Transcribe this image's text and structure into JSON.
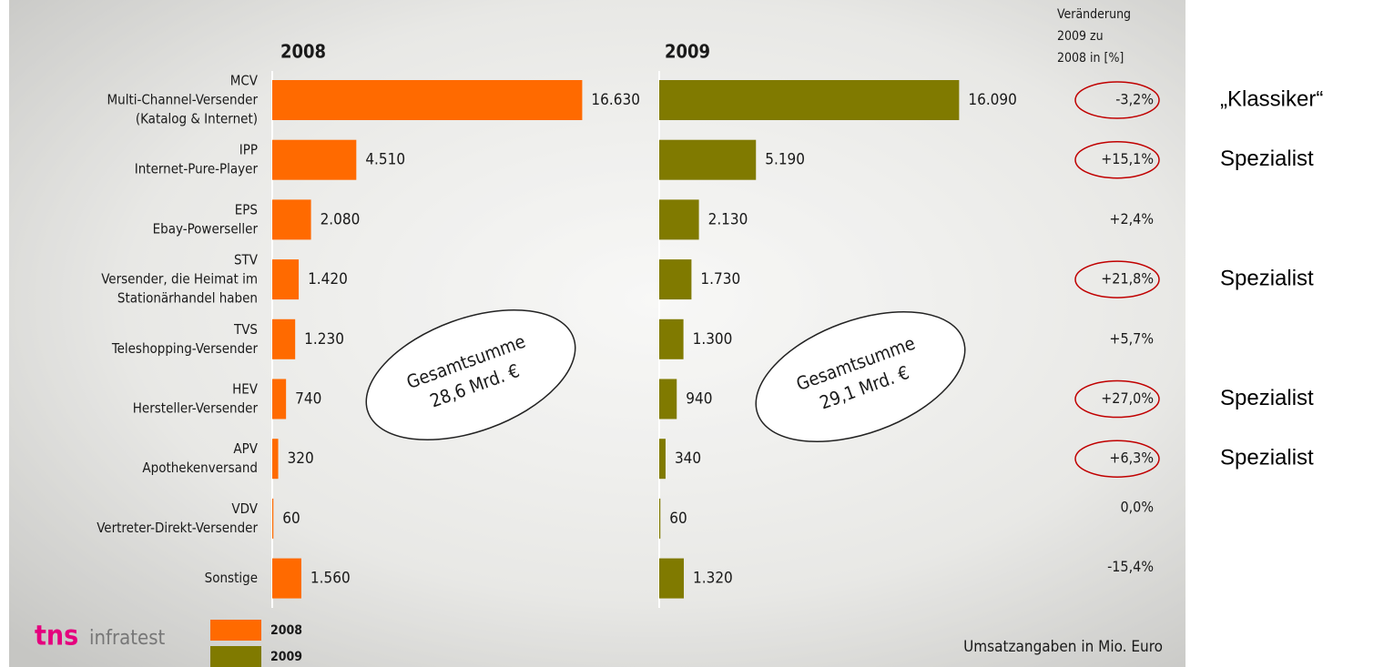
{
  "chart_data": {
    "type": "bar",
    "orientation": "horizontal",
    "categories": [
      "MCV",
      "IPP",
      "EPS",
      "STV",
      "TVS",
      "HEV",
      "APV",
      "VDV",
      "Sonstige"
    ],
    "category_descriptions": [
      [
        "Multi-Channel-Versender",
        "(Katalog & Internet)"
      ],
      [
        "Internet-Pure-Player"
      ],
      [
        "Ebay-Powerseller"
      ],
      [
        "Versender, die Heimat im",
        "Stationärhandel haben"
      ],
      [
        "Teleshopping-Versender"
      ],
      [
        "Hersteller-Versender"
      ],
      [
        "Apothekenversand"
      ],
      [
        "Vertreter-Direkt-Versender"
      ],
      []
    ],
    "series": [
      {
        "name": "2008",
        "color": "#ff6a00",
        "values": [
          16630,
          4510,
          2080,
          1420,
          1230,
          740,
          320,
          60,
          1560
        ],
        "value_labels": [
          "16.630",
          "4.510",
          "2.080",
          "1.420",
          "1.230",
          "740",
          "320",
          "60",
          "1.560"
        ]
      },
      {
        "name": "2009",
        "color": "#807a00",
        "values": [
          16090,
          5190,
          2130,
          1730,
          1300,
          940,
          340,
          60,
          1320
        ],
        "value_labels": [
          "16.090",
          "5.190",
          "2.130",
          "1.730",
          "1.300",
          "940",
          "340",
          "60",
          "1.320"
        ]
      }
    ],
    "xlim": [
      0,
      17000
    ],
    "totals": [
      {
        "label": "Gesamtsumme",
        "value_label": "28,6 Mrd. €"
      },
      {
        "label": "Gesamtsumme",
        "value_label": "29,1 Mrd. €"
      }
    ],
    "change": {
      "title": [
        "Veränderung",
        "2009 zu",
        "2008 in [%]"
      ],
      "values": [
        -3.2,
        15.1,
        2.4,
        21.8,
        5.7,
        27.0,
        6.3,
        0.0,
        -15.4
      ],
      "value_labels": [
        "-3,2%",
        "+15,1%",
        "+2,4%",
        "+21,8%",
        "+5,7%",
        "+27,0%",
        "+6,3%",
        "0,0%",
        "-15,4%"
      ],
      "highlighted": [
        true,
        true,
        false,
        true,
        false,
        true,
        true,
        false,
        false
      ],
      "highlight_color": "#c00000"
    },
    "annotations": [
      "„Klassiker“",
      "Spezialist",
      null,
      "Spezialist",
      null,
      "Spezialist",
      "Spezialist",
      null,
      null
    ],
    "source": "Umsatzangaben in Mio. Euro",
    "logo": [
      "tns",
      "infratest"
    ]
  }
}
